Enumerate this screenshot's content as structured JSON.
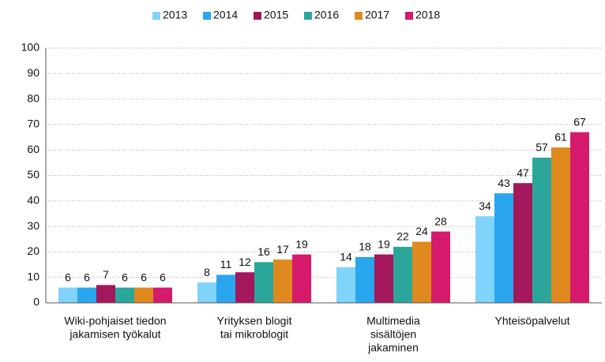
{
  "chart_data": {
    "type": "bar",
    "categories": [
      [
        "Wiki-pohjaiset tiedon",
        "jakamisen työkalut"
      ],
      [
        "Yrityksen blogit",
        "tai mikroblogit"
      ],
      [
        "Multimedia",
        "sisältöjen",
        "jakaminen"
      ],
      [
        "Yhteisöpalvelut"
      ]
    ],
    "series": [
      {
        "name": "2013",
        "color": "#80d3fb",
        "values": [
          6,
          8,
          14,
          34
        ]
      },
      {
        "name": "2014",
        "color": "#2aa6ee",
        "values": [
          6,
          11,
          18,
          43
        ]
      },
      {
        "name": "2015",
        "color": "#a2185b",
        "values": [
          7,
          12,
          19,
          47
        ]
      },
      {
        "name": "2016",
        "color": "#2aa69a",
        "values": [
          6,
          16,
          22,
          57
        ]
      },
      {
        "name": "2017",
        "color": "#e0891e",
        "values": [
          6,
          17,
          24,
          61
        ]
      },
      {
        "name": "2018",
        "color": "#d51a6c",
        "values": [
          6,
          19,
          28,
          67
        ]
      }
    ],
    "ylim": [
      0,
      100
    ],
    "yticks": [
      0,
      10,
      20,
      30,
      40,
      50,
      60,
      70,
      80,
      90,
      100
    ],
    "grid": true,
    "legend": "top"
  }
}
